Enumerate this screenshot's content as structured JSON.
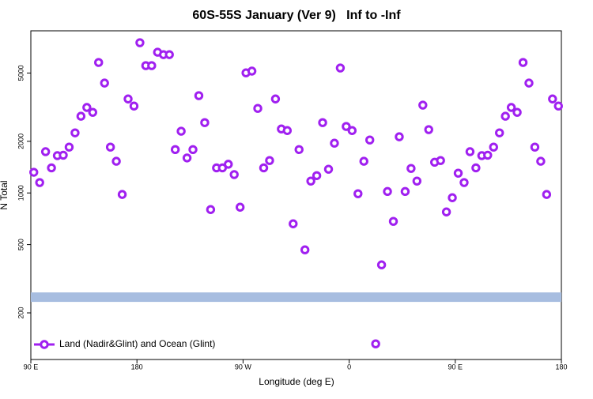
{
  "chart_data": {
    "type": "scatter",
    "title": "60S-55S January (Ver 9)   Inf to -Inf",
    "x_label": "Longitude (deg E)",
    "y_label": "N Total",
    "log_y": true,
    "legend_position": "bottomleft",
    "xlim": [
      90,
      540
    ],
    "xticks": [
      {
        "value": 90,
        "label": "90 E"
      },
      {
        "value": 180,
        "label": "180"
      },
      {
        "value": 270,
        "label": "90 W"
      },
      {
        "value": 360,
        "label": "0"
      },
      {
        "value": 450,
        "label": "90 E"
      },
      {
        "value": 540,
        "label": "180"
      }
    ],
    "ylim": [
      107,
      8810
    ],
    "yticks": [
      200,
      500,
      1000,
      2000,
      5000
    ],
    "reference_band": {
      "value": 247,
      "color": "#a7bde0"
    },
    "x": [
      92.5,
      97.5,
      102.5,
      107.5,
      112.5,
      117.5,
      122.5,
      127.5,
      132.5,
      137.5,
      142.5,
      147.5,
      152.5,
      157.5,
      162.5,
      167.5,
      172.5,
      177.5,
      182.5,
      187.5,
      192.5,
      197.5,
      202.5,
      207.5,
      212.5,
      217.5,
      222.5,
      227.5,
      232.5,
      237.5,
      242.5,
      247.5,
      252.5,
      257.5,
      262.5,
      267.5,
      272.5,
      277.5,
      282.5,
      287.5,
      292.5,
      297.5,
      302.5,
      307.5,
      312.5,
      317.5,
      322.5,
      327.5,
      332.5,
      337.5,
      342.5,
      347.5,
      352.5,
      357.5,
      362.5,
      367.5,
      372.5,
      377.5,
      382.5,
      387.5,
      392.5,
      397.5,
      402.5,
      407.5,
      412.5,
      417.5,
      422.5,
      427.5,
      432.5,
      437.5,
      442.5,
      447.5,
      452.5,
      457.5,
      462.5,
      467.5,
      472.5,
      477.5,
      482.5,
      487.5,
      492.5,
      497.5,
      502.5,
      507.5,
      512.5,
      517.5,
      522.5,
      527.5,
      532.5,
      537.5
    ],
    "series": [
      {
        "name": "Land (Nadir&Glint) and Ocean (Glint)",
        "color": "#a020f0",
        "values": [
          1320,
          1150,
          1740,
          1400,
          1650,
          1660,
          1850,
          2240,
          2800,
          3150,
          2950,
          5760,
          4370,
          1850,
          1530,
          980,
          3530,
          3210,
          7510,
          5520,
          5520,
          6610,
          6400,
          6400,
          1790,
          2290,
          1600,
          1790,
          3690,
          2570,
          800,
          1400,
          1400,
          1470,
          1280,
          826,
          5010,
          5130,
          3110,
          1400,
          1545,
          3530,
          2360,
          2310,
          661,
          1790,
          466,
          1173,
          1262,
          2570,
          1375,
          1950,
          5350,
          2440,
          2310,
          990,
          1530,
          2035,
          132,
          381,
          1020,
          683,
          2125,
          1020,
          1390,
          1173,
          3250,
          2340,
          1510,
          1545,
          775,
          938,
          1304,
          1150,
          1740,
          1400,
          1650,
          1660,
          1850,
          2240,
          2800,
          3150,
          2950,
          5760,
          4370,
          1850,
          1530,
          980,
          3530,
          3210
        ]
      }
    ]
  }
}
